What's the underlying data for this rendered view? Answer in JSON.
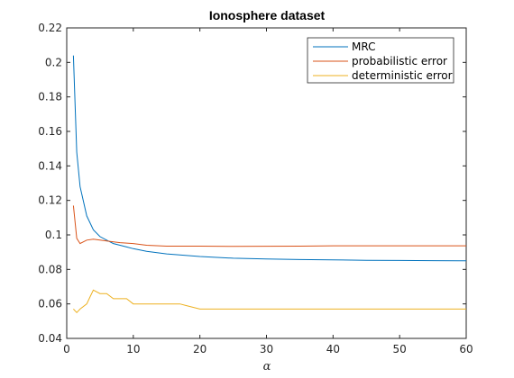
{
  "chart_data": {
    "type": "line",
    "title": "Ionosphere dataset",
    "xlabel": "α",
    "ylabel": "",
    "xlim": [
      0,
      60
    ],
    "ylim": [
      0.04,
      0.22
    ],
    "xticks": [
      0,
      10,
      20,
      30,
      40,
      50,
      60
    ],
    "yticks": [
      0.04,
      0.06,
      0.08,
      0.1,
      0.12,
      0.14,
      0.16,
      0.18,
      0.2,
      0.22
    ],
    "xtick_labels": [
      "0",
      "10",
      "20",
      "30",
      "40",
      "50",
      "60"
    ],
    "ytick_labels": [
      "0.04",
      "0.06",
      "0.08",
      "0.1",
      "0.12",
      "0.14",
      "0.16",
      "0.18",
      "0.2",
      "0.22"
    ],
    "grid": false,
    "legend_position": "top-right",
    "series": [
      {
        "name": "MRC",
        "color": "#0072bd",
        "x": [
          1,
          1.5,
          2,
          3,
          4,
          5,
          6,
          7,
          8,
          9,
          10,
          12,
          15,
          20,
          25,
          30,
          35,
          40,
          45,
          50,
          55,
          60
        ],
        "y": [
          0.204,
          0.148,
          0.128,
          0.111,
          0.103,
          0.099,
          0.097,
          0.095,
          0.094,
          0.093,
          0.092,
          0.0905,
          0.089,
          0.0875,
          0.0865,
          0.086,
          0.0857,
          0.0855,
          0.0853,
          0.0852,
          0.0851,
          0.085
        ]
      },
      {
        "name": "probabilistic error",
        "color": "#d95319",
        "x": [
          1,
          1.5,
          2,
          2.5,
          3,
          4,
          5,
          6,
          8,
          10,
          12,
          15,
          20,
          25,
          30,
          35,
          40,
          45,
          50,
          55,
          60
        ],
        "y": [
          0.117,
          0.098,
          0.095,
          0.096,
          0.097,
          0.0975,
          0.097,
          0.0965,
          0.0955,
          0.095,
          0.094,
          0.0935,
          0.0935,
          0.0933,
          0.0934,
          0.0935,
          0.0937,
          0.0937,
          0.0937,
          0.0937,
          0.0937
        ]
      },
      {
        "name": "deterministic error",
        "color": "#edb120",
        "x": [
          1,
          1.5,
          2,
          3,
          3.5,
          4,
          5,
          6,
          7,
          8,
          9,
          10,
          11,
          15,
          17,
          18,
          20,
          25,
          30,
          35,
          40,
          50,
          60
        ],
        "y": [
          0.057,
          0.055,
          0.057,
          0.06,
          0.064,
          0.068,
          0.066,
          0.066,
          0.063,
          0.063,
          0.063,
          0.06,
          0.06,
          0.06,
          0.06,
          0.059,
          0.057,
          0.057,
          0.057,
          0.057,
          0.057,
          0.057,
          0.057
        ]
      }
    ]
  }
}
